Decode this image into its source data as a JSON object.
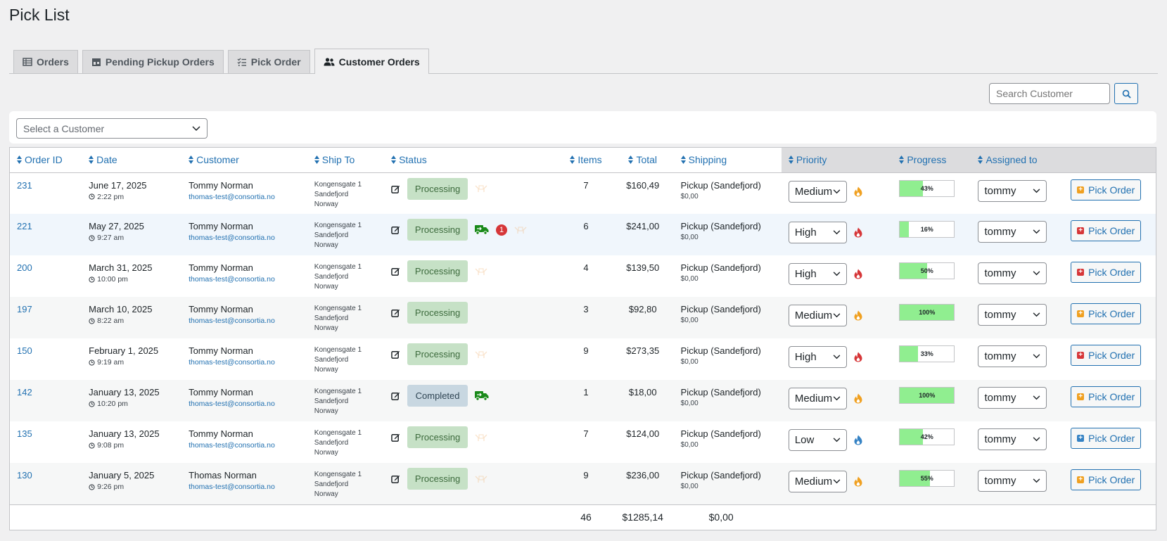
{
  "page_title": "Pick List",
  "tabs": [
    {
      "label": "Orders",
      "icon": "table-icon",
      "active": false
    },
    {
      "label": "Pending Pickup Orders",
      "icon": "store-icon",
      "active": false
    },
    {
      "label": "Pick Order",
      "icon": "checklist-icon",
      "active": false
    },
    {
      "label": "Customer Orders",
      "icon": "users-icon",
      "active": true
    }
  ],
  "search": {
    "placeholder": "Search Customer",
    "value": ""
  },
  "customer_filter": {
    "placeholder": "Select a Customer"
  },
  "columns": {
    "order_id": "Order ID",
    "date": "Date",
    "customer": "Customer",
    "ship_to": "Ship To",
    "status": "Status",
    "items": "Items",
    "total": "Total",
    "shipping": "Shipping",
    "priority": "Priority",
    "progress": "Progress",
    "assigned_to": "Assigned to"
  },
  "rows": [
    {
      "id": "231",
      "date": "June 17, 2025",
      "time": "2:22 pm",
      "customer": "Tommy Norman",
      "email": "thomas-test@consortia.no",
      "addr1": "Kongensgate 1",
      "addr2": "Sandefjord",
      "addr3": "Norway",
      "status": "Processing",
      "truck": false,
      "notes": "",
      "pickup_icon": true,
      "items": "7",
      "total": "$160,49",
      "ship": "Pickup (Sandefjord)",
      "ship_cost": "$0,00",
      "priority": "Medium",
      "progress": 43,
      "progress_label": "43%",
      "assigned": "tommy",
      "pick_label": "Pick Order"
    },
    {
      "id": "221",
      "date": "May 27, 2025",
      "time": "9:27 am",
      "customer": "Tommy Norman",
      "email": "thomas-test@consortia.no",
      "addr1": "Kongensgate 1",
      "addr2": "Sandefjord",
      "addr3": "Norway",
      "status": "Processing",
      "truck": true,
      "notes": "1",
      "pickup_icon": true,
      "items": "6",
      "total": "$241,00",
      "ship": "Pickup (Sandefjord)",
      "ship_cost": "$0,00",
      "priority": "High",
      "progress": 16,
      "progress_label": "16%",
      "assigned": "tommy",
      "pick_label": "Pick Order"
    },
    {
      "id": "200",
      "date": "March 31, 2025",
      "time": "10:00 pm",
      "customer": "Tommy Norman",
      "email": "thomas-test@consortia.no",
      "addr1": "Kongensgate 1",
      "addr2": "Sandefjord",
      "addr3": "Norway",
      "status": "Processing",
      "truck": false,
      "notes": "",
      "pickup_icon": true,
      "items": "4",
      "total": "$139,50",
      "ship": "Pickup (Sandefjord)",
      "ship_cost": "$0,00",
      "priority": "High",
      "progress": 50,
      "progress_label": "50%",
      "assigned": "tommy",
      "pick_label": "Pick Order"
    },
    {
      "id": "197",
      "date": "March 10, 2025",
      "time": "8:22 am",
      "customer": "Tommy Norman",
      "email": "thomas-test@consortia.no",
      "addr1": "Kongensgate 1",
      "addr2": "Sandefjord",
      "addr3": "Norway",
      "status": "Processing",
      "truck": false,
      "notes": "",
      "pickup_icon": false,
      "items": "3",
      "total": "$92,80",
      "ship": "Pickup (Sandefjord)",
      "ship_cost": "$0,00",
      "priority": "Medium",
      "progress": 100,
      "progress_label": "100%",
      "assigned": "tommy",
      "pick_label": "Pick Order"
    },
    {
      "id": "150",
      "date": "February 1, 2025",
      "time": "9:19 am",
      "customer": "Tommy Norman",
      "email": "thomas-test@consortia.no",
      "addr1": "Kongensgate 1",
      "addr2": "Sandefjord",
      "addr3": "Norway",
      "status": "Processing",
      "truck": false,
      "notes": "",
      "pickup_icon": true,
      "items": "9",
      "total": "$273,35",
      "ship": "Pickup (Sandefjord)",
      "ship_cost": "$0,00",
      "priority": "High",
      "progress": 33,
      "progress_label": "33%",
      "assigned": "tommy",
      "pick_label": "Pick Order"
    },
    {
      "id": "142",
      "date": "January 13, 2025",
      "time": "10:20 pm",
      "customer": "Tommy Norman",
      "email": "thomas-test@consortia.no",
      "addr1": "Kongensgate 1",
      "addr2": "Sandefjord",
      "addr3": "Norway",
      "status": "Completed",
      "truck": true,
      "notes": "",
      "pickup_icon": false,
      "items": "1",
      "total": "$18,00",
      "ship": "Pickup (Sandefjord)",
      "ship_cost": "$0,00",
      "priority": "Medium",
      "progress": 100,
      "progress_label": "100%",
      "assigned": "tommy",
      "pick_label": "Pick Order"
    },
    {
      "id": "135",
      "date": "January 13, 2025",
      "time": "9:08 pm",
      "customer": "Tommy Norman",
      "email": "thomas-test@consortia.no",
      "addr1": "Kongensgate 1",
      "addr2": "Sandefjord",
      "addr3": "Norway",
      "status": "Processing",
      "truck": false,
      "notes": "",
      "pickup_icon": true,
      "items": "7",
      "total": "$124,00",
      "ship": "Pickup (Sandefjord)",
      "ship_cost": "$0,00",
      "priority": "Low",
      "progress": 42,
      "progress_label": "42%",
      "assigned": "tommy",
      "pick_label": "Pick Order"
    },
    {
      "id": "130",
      "date": "January 5, 2025",
      "time": "9:26 pm",
      "customer": "Thomas Norman",
      "email": "thomas-test@consortia.no",
      "addr1": "Kongensgate 1",
      "addr2": "Sandefjord",
      "addr3": "Norway",
      "status": "Processing",
      "truck": false,
      "notes": "",
      "pickup_icon": true,
      "items": "9",
      "total": "$236,00",
      "ship": "Pickup (Sandefjord)",
      "ship_cost": "$0,00",
      "priority": "Medium",
      "progress": 55,
      "progress_label": "55%",
      "assigned": "tommy",
      "pick_label": "Pick Order"
    }
  ],
  "totals": {
    "items": "46",
    "total": "$1285,14",
    "shipping": "$0,00"
  },
  "colors": {
    "link": "#2271b1",
    "priority_high": "#d63638",
    "priority_medium": "#f0a020",
    "priority_low": "#3582c4",
    "progress_fill": "#90ee90",
    "truck": "#1a8a1a"
  }
}
